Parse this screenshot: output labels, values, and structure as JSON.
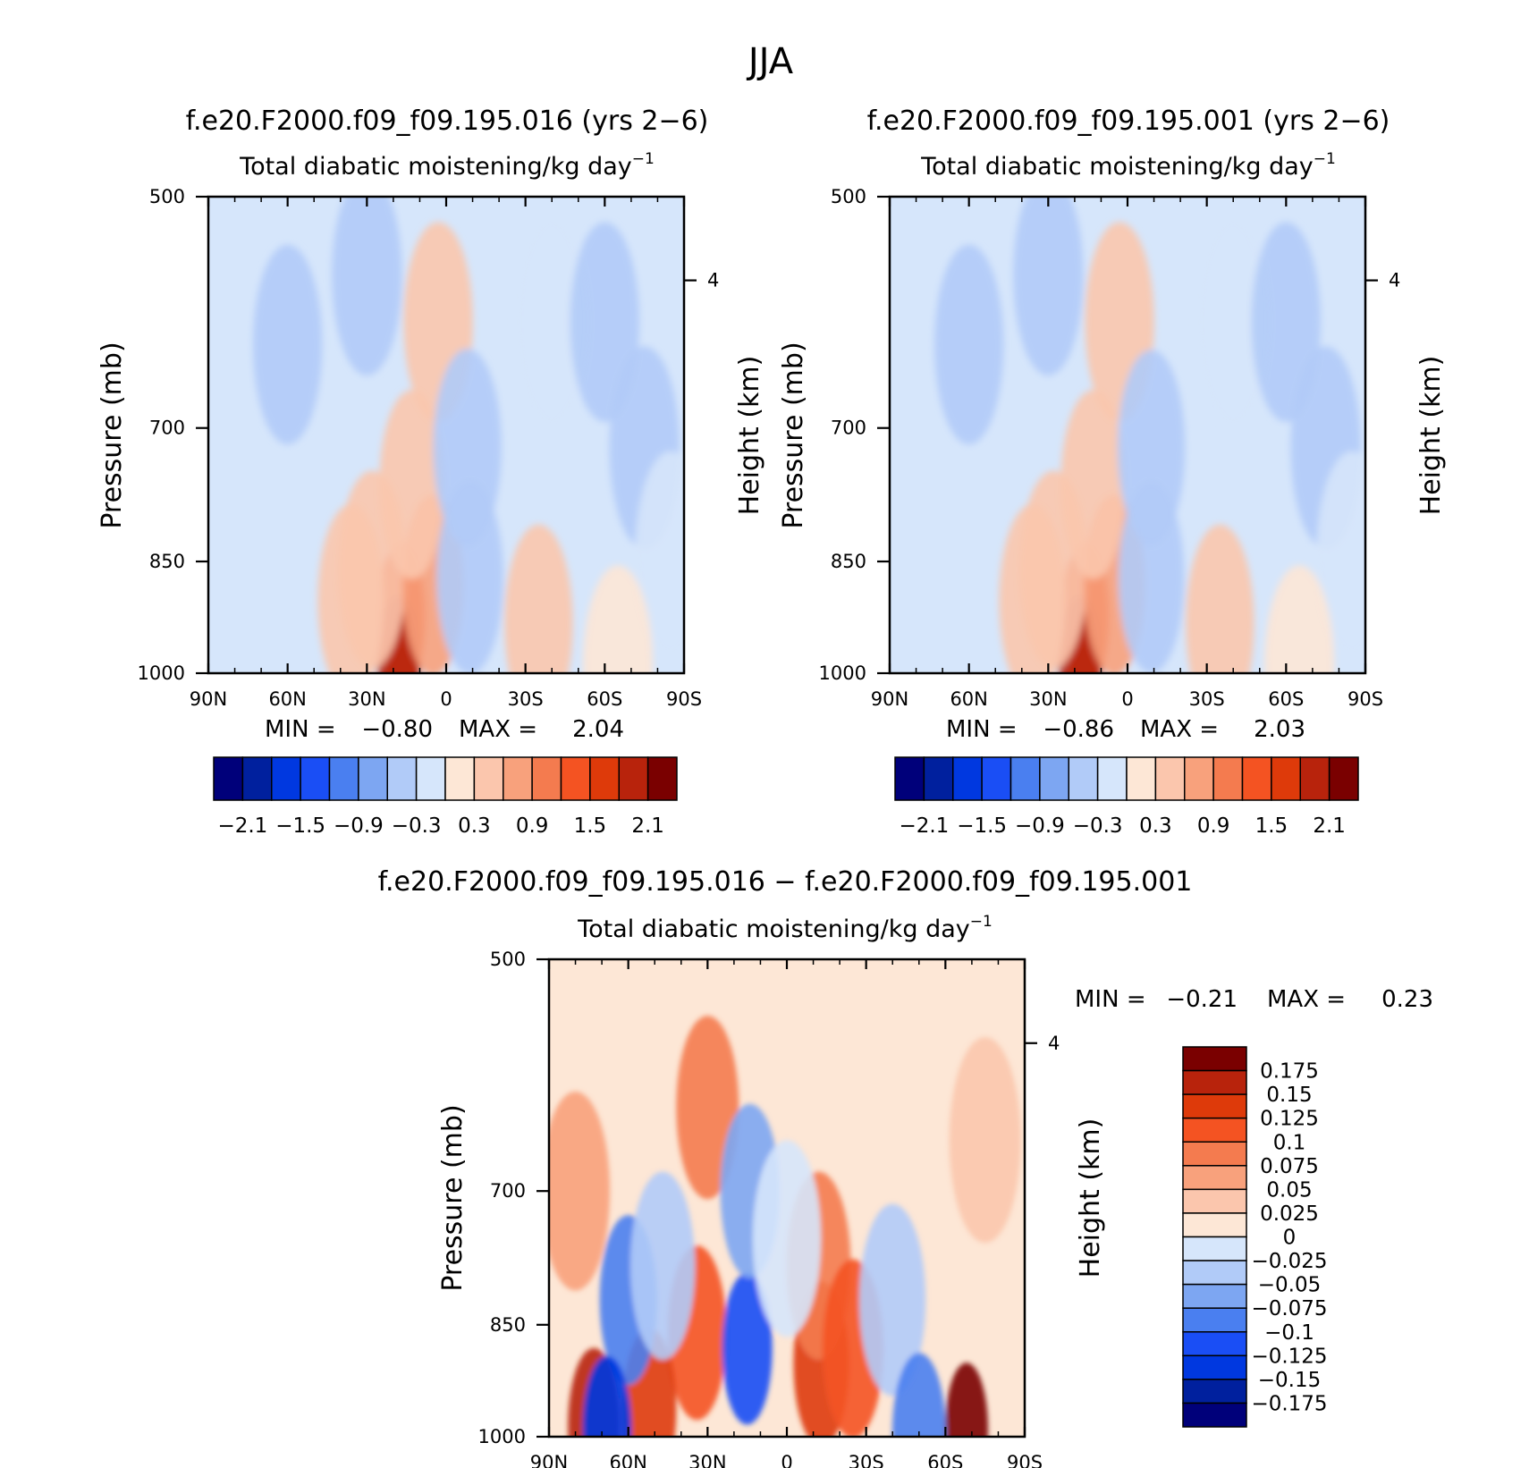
{
  "figure_title": "JJA",
  "chart_data": [
    {
      "type": "heatmap",
      "panel": "top-left",
      "title": "f.e20.F2000.f09_f09.195.016 (yrs 2−6)",
      "subtitle": "Total diabatic moistening/kg day",
      "subtitle_sup": "−1",
      "ylabel": "Pressure (mb)",
      "y2label": "Height (km)",
      "x_ticks": [
        "90N",
        "60N",
        "30N",
        "0",
        "30S",
        "60S",
        "90S"
      ],
      "y_ticks": [
        500,
        700,
        850,
        1000
      ],
      "y2_ticks": [
        4
      ],
      "xlim": [
        90,
        -90
      ],
      "ylim": [
        1000,
        500
      ],
      "stats": {
        "min_label": "MIN =",
        "min_value": "−0.80",
        "max_label": "MAX =",
        "max_value": "2.04"
      },
      "colorbar": {
        "labels": [
          "−2.1",
          "−1.5",
          "−0.9",
          "−0.3",
          "0.3",
          "0.9",
          "1.5",
          "2.1"
        ],
        "levels": [
          -2.1,
          -1.8,
          -1.5,
          -1.2,
          -0.9,
          -0.6,
          -0.3,
          0,
          0.3,
          0.6,
          0.9,
          1.2,
          1.5,
          1.8,
          2.1
        ]
      },
      "features": [
        {
          "lat": 17,
          "p": 920,
          "value": 1.6
        },
        {
          "lat": 18,
          "p": 985,
          "value": 1.9
        },
        {
          "lat": 36,
          "p": 900,
          "value": 0.5
        },
        {
          "lat": 28,
          "p": 860,
          "value": 0.4
        },
        {
          "lat": 5,
          "p": 880,
          "value": 0.8
        },
        {
          "lat": 3,
          "p": 600,
          "value": 0.35
        },
        {
          "lat": 13,
          "p": 760,
          "value": 0.6
        },
        {
          "lat": -8,
          "p": 720,
          "value": -0.4
        },
        {
          "lat": -9,
          "p": 870,
          "value": -0.5
        },
        {
          "lat": 30,
          "p": 560,
          "value": -0.3
        },
        {
          "lat": 60,
          "p": 620,
          "value": -0.35
        },
        {
          "lat": -40,
          "p": 600,
          "value": -0.15
        },
        {
          "lat": -60,
          "p": 600,
          "value": -0.35
        },
        {
          "lat": -75,
          "p": 720,
          "value": -0.3
        },
        {
          "lat": -85,
          "p": 840,
          "value": -0.25
        },
        {
          "lat": -65,
          "p": 990,
          "value": 0.3
        },
        {
          "lat": -35,
          "p": 930,
          "value": 0.4
        }
      ]
    },
    {
      "type": "heatmap",
      "panel": "top-right",
      "title": "f.e20.F2000.f09_f09.195.001 (yrs 2−6)",
      "subtitle": "Total diabatic moistening/kg day",
      "subtitle_sup": "−1",
      "ylabel": "Pressure (mb)",
      "y2label": "Height (km)",
      "x_ticks": [
        "90N",
        "60N",
        "30N",
        "0",
        "30S",
        "60S",
        "90S"
      ],
      "y_ticks": [
        500,
        700,
        850,
        1000
      ],
      "y2_ticks": [
        4
      ],
      "xlim": [
        90,
        -90
      ],
      "ylim": [
        1000,
        500
      ],
      "stats": {
        "min_label": "MIN =",
        "min_value": "−0.86",
        "max_label": "MAX =",
        "max_value": "2.03"
      },
      "colorbar": {
        "labels": [
          "−2.1",
          "−1.5",
          "−0.9",
          "−0.3",
          "0.3",
          "0.9",
          "1.5",
          "2.1"
        ],
        "levels": [
          -2.1,
          -1.8,
          -1.5,
          -1.2,
          -0.9,
          -0.6,
          -0.3,
          0,
          0.3,
          0.6,
          0.9,
          1.2,
          1.5,
          1.8,
          2.1
        ]
      },
      "features": [
        {
          "lat": 16,
          "p": 920,
          "value": 1.6
        },
        {
          "lat": 18,
          "p": 985,
          "value": 1.9
        },
        {
          "lat": 36,
          "p": 900,
          "value": 0.5
        },
        {
          "lat": 28,
          "p": 860,
          "value": 0.4
        },
        {
          "lat": 5,
          "p": 880,
          "value": 0.8
        },
        {
          "lat": 3,
          "p": 600,
          "value": 0.35
        },
        {
          "lat": 13,
          "p": 760,
          "value": 0.6
        },
        {
          "lat": -9,
          "p": 720,
          "value": -0.45
        },
        {
          "lat": -9,
          "p": 870,
          "value": -0.55
        },
        {
          "lat": 30,
          "p": 560,
          "value": -0.3
        },
        {
          "lat": 60,
          "p": 620,
          "value": -0.35
        },
        {
          "lat": -40,
          "p": 600,
          "value": -0.15
        },
        {
          "lat": -60,
          "p": 600,
          "value": -0.35
        },
        {
          "lat": -75,
          "p": 720,
          "value": -0.3
        },
        {
          "lat": -85,
          "p": 840,
          "value": -0.25
        },
        {
          "lat": -65,
          "p": 990,
          "value": 0.3
        },
        {
          "lat": -35,
          "p": 930,
          "value": 0.4
        }
      ]
    },
    {
      "type": "heatmap",
      "panel": "bottom",
      "title": "f.e20.F2000.f09_f09.195.016 − f.e20.F2000.f09_f09.195.001",
      "subtitle": "Total diabatic moistening/kg day",
      "subtitle_sup": "−1",
      "ylabel": "Pressure (mb)",
      "y2label": "Height (km)",
      "x_ticks": [
        "90N",
        "60N",
        "30N",
        "0",
        "30S",
        "60S",
        "90S"
      ],
      "y_ticks": [
        500,
        700,
        850,
        1000
      ],
      "y2_ticks": [
        4
      ],
      "xlim": [
        90,
        -90
      ],
      "ylim": [
        1000,
        500
      ],
      "stats": {
        "min_label": "MIN =",
        "min_value": "−0.21",
        "max_label": "MAX =",
        "max_value": "0.23"
      },
      "colorbar": {
        "labels": [
          "0.175",
          "0.15",
          "0.125",
          "0.1",
          "0.075",
          "0.05",
          "0.025",
          "0",
          "−0.025",
          "−0.05",
          "−0.075",
          "−0.1",
          "−0.125",
          "−0.15",
          "−0.175"
        ],
        "levels": [
          -0.2,
          -0.175,
          -0.15,
          -0.125,
          -0.1,
          -0.075,
          -0.05,
          -0.025,
          0,
          0.025,
          0.05,
          0.075,
          0.1,
          0.125,
          0.15,
          0.175
        ]
      },
      "features": [
        {
          "lat": -13,
          "p": 900,
          "value": 0.11
        },
        {
          "lat": -12,
          "p": 780,
          "value": 0.06
        },
        {
          "lat": 34,
          "p": 860,
          "value": 0.09
        },
        {
          "lat": 30,
          "p": 620,
          "value": 0.07
        },
        {
          "lat": 52,
          "p": 960,
          "value": 0.12
        },
        {
          "lat": 73,
          "p": 985,
          "value": 0.13
        },
        {
          "lat": -68,
          "p": 990,
          "value": 0.18
        },
        {
          "lat": -25,
          "p": 880,
          "value": 0.08
        },
        {
          "lat": 15,
          "p": 880,
          "value": -0.14
        },
        {
          "lat": 14,
          "p": 700,
          "value": -0.09
        },
        {
          "lat": 60,
          "p": 820,
          "value": -0.1
        },
        {
          "lat": 68,
          "p": 990,
          "value": -0.15
        },
        {
          "lat": 47,
          "p": 780,
          "value": -0.06
        },
        {
          "lat": -40,
          "p": 820,
          "value": -0.05
        },
        {
          "lat": -50,
          "p": 995,
          "value": -0.12
        },
        {
          "lat": 0,
          "p": 750,
          "value": -0.04
        },
        {
          "lat": 80,
          "p": 700,
          "value": 0.035
        },
        {
          "lat": -75,
          "p": 650,
          "value": 0.02
        }
      ]
    }
  ]
}
